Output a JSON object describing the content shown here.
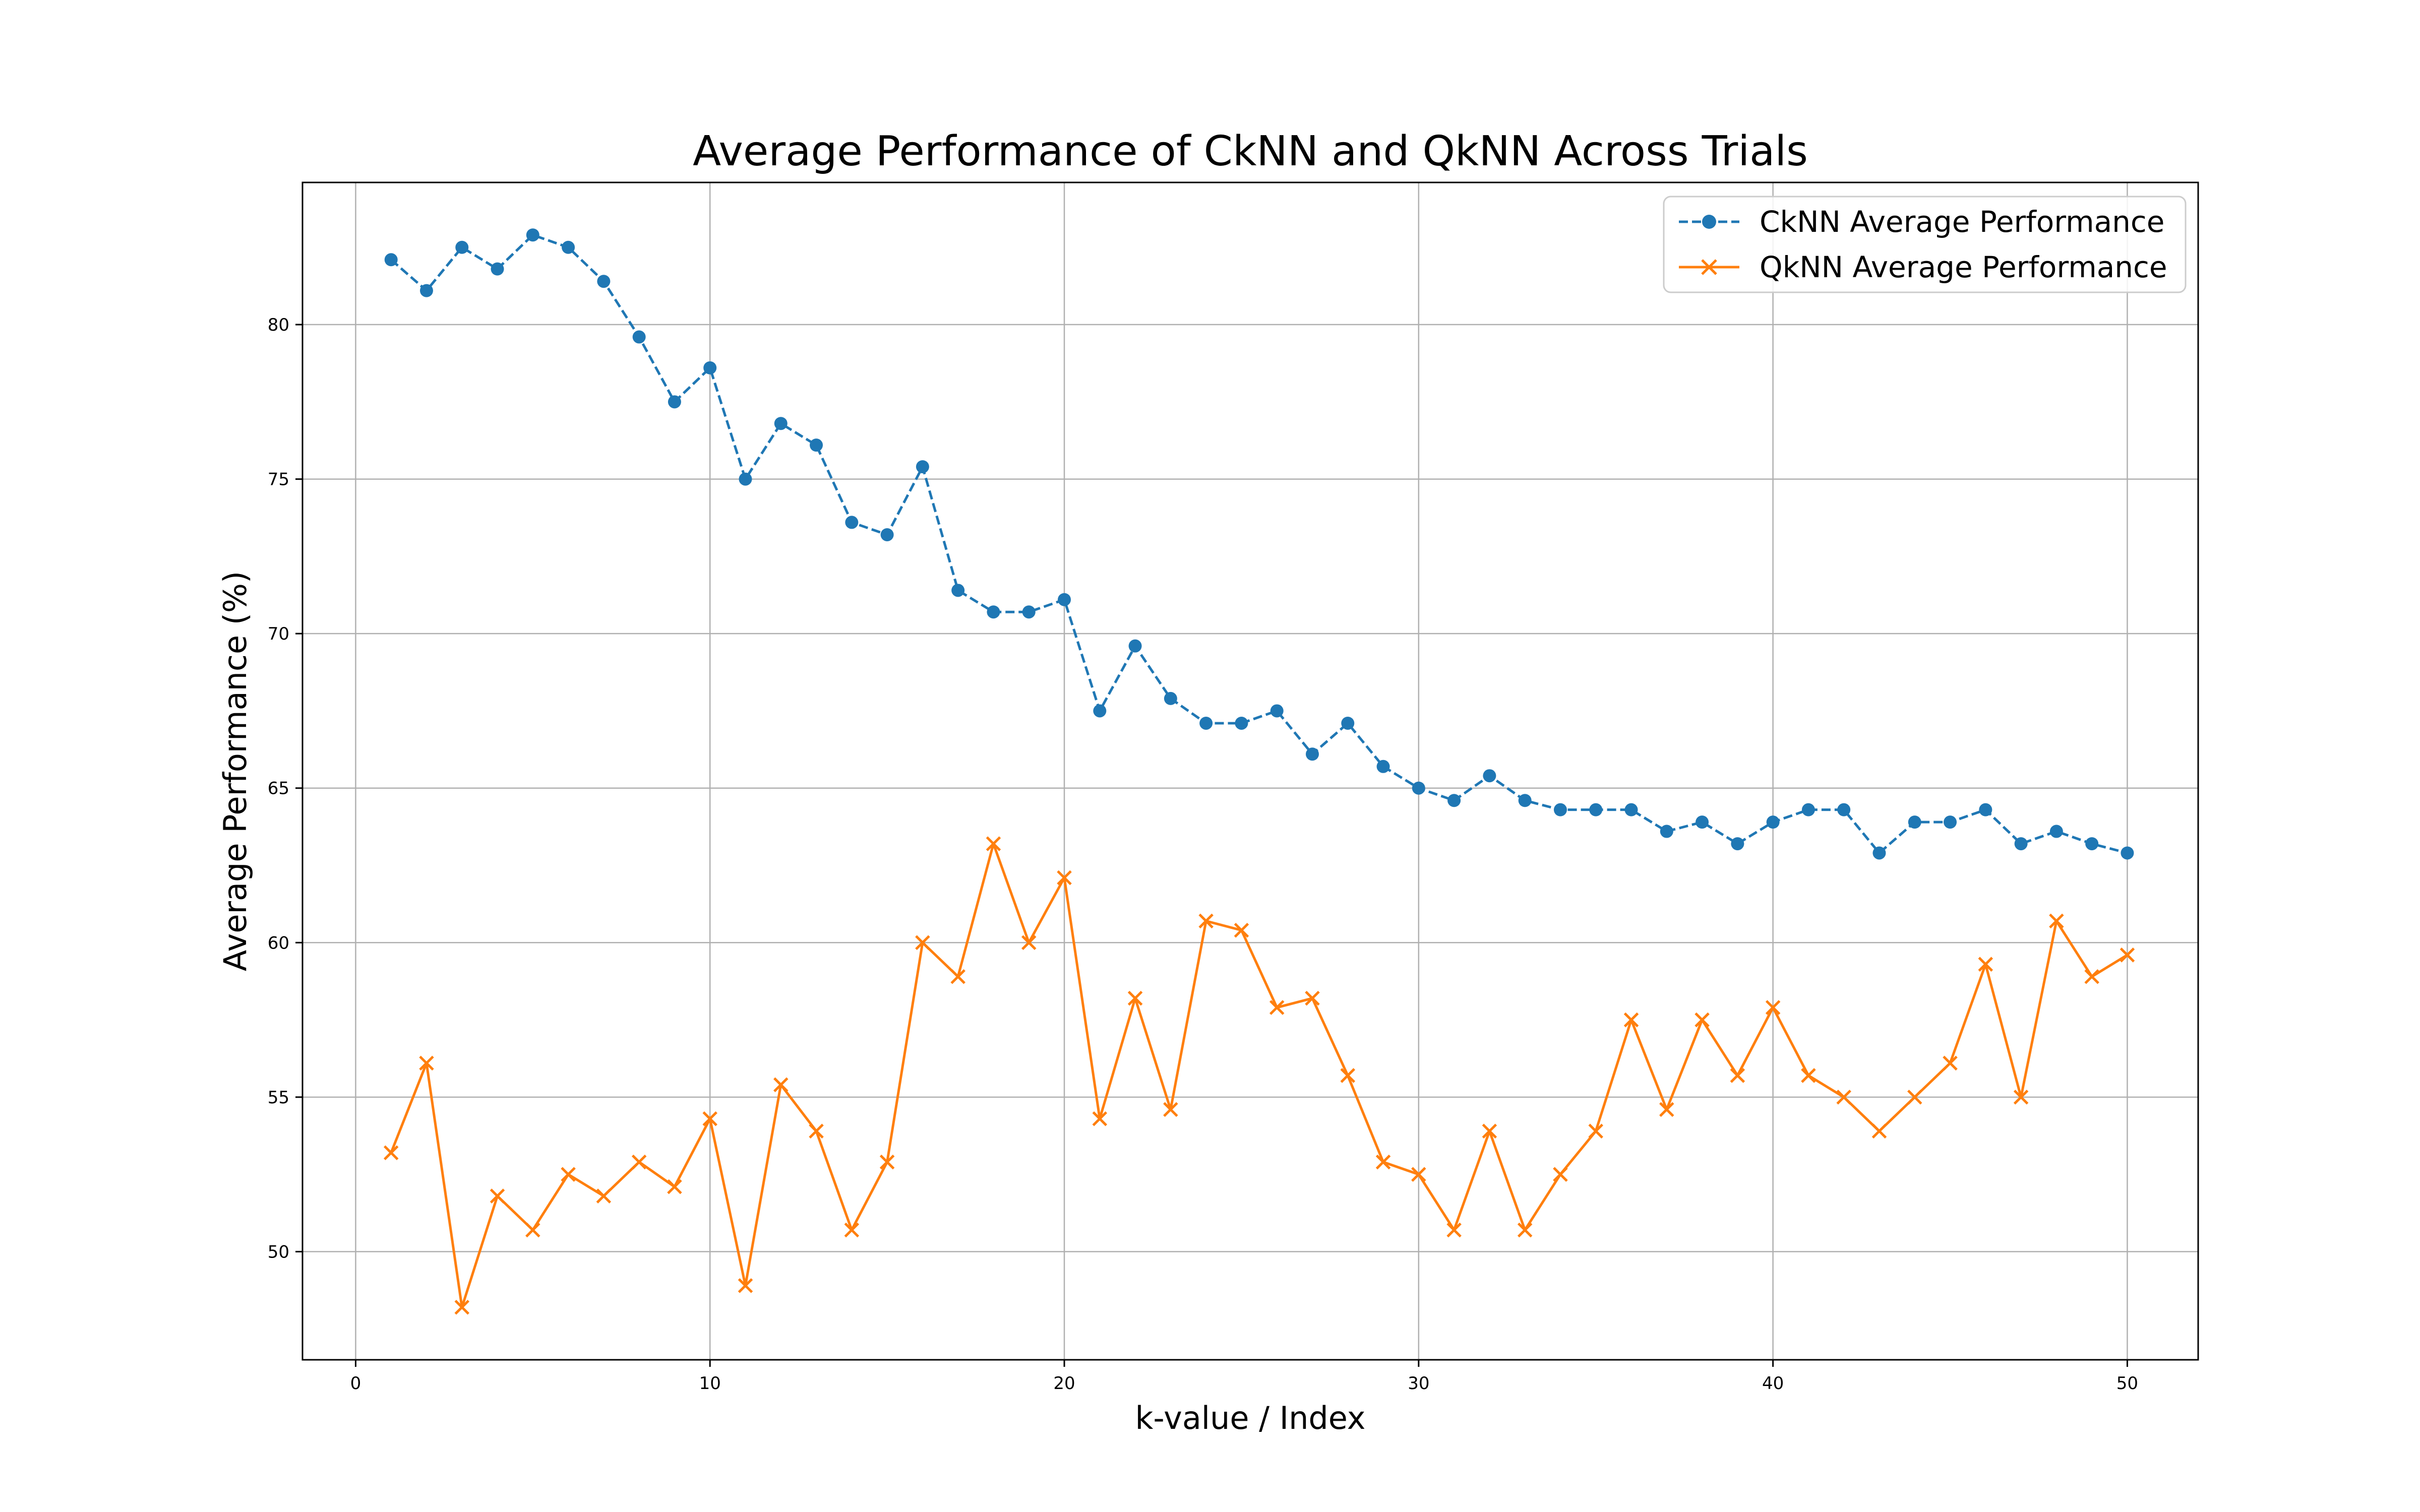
{
  "chart_data": {
    "type": "line",
    "title": "Average Performance of CkNN and QkNN Across Trials",
    "xlabel": "k-value / Index",
    "ylabel": "Average Performance (%)",
    "xlim": [
      -1.5,
      52
    ],
    "ylim": [
      46.5,
      84.6
    ],
    "xticks": [
      0,
      10,
      20,
      30,
      40,
      50
    ],
    "yticks": [
      50,
      55,
      60,
      65,
      70,
      75,
      80
    ],
    "grid": true,
    "legend_position": "top-right",
    "x": [
      1,
      2,
      3,
      4,
      5,
      6,
      7,
      8,
      9,
      10,
      11,
      12,
      13,
      14,
      15,
      16,
      17,
      18,
      19,
      20,
      21,
      22,
      23,
      24,
      25,
      26,
      27,
      28,
      29,
      30,
      31,
      32,
      33,
      34,
      35,
      36,
      37,
      38,
      39,
      40,
      41,
      42,
      43,
      44,
      45,
      46,
      47,
      48,
      49,
      50
    ],
    "series": [
      {
        "name": "CkNN Average Performance",
        "color": "#1f77b4",
        "line_style": "dashed",
        "marker": "circle",
        "values": [
          82.1,
          81.1,
          82.5,
          81.8,
          82.9,
          82.5,
          81.4,
          79.6,
          77.5,
          78.6,
          75.0,
          76.8,
          76.1,
          73.6,
          73.2,
          75.4,
          71.4,
          70.7,
          70.7,
          71.1,
          67.5,
          69.6,
          67.9,
          67.1,
          67.1,
          67.5,
          66.1,
          67.1,
          65.7,
          65.0,
          64.6,
          65.4,
          64.6,
          64.3,
          64.3,
          64.3,
          63.6,
          63.9,
          63.2,
          63.9,
          64.3,
          64.3,
          62.9,
          63.9,
          63.9,
          64.3,
          63.2,
          63.6,
          63.2,
          62.9
        ]
      },
      {
        "name": "QkNN Average Performance",
        "color": "#ff7f0e",
        "line_style": "solid",
        "marker": "x",
        "values": [
          53.2,
          56.1,
          48.2,
          51.8,
          50.7,
          52.5,
          51.8,
          52.9,
          52.1,
          54.3,
          48.9,
          55.4,
          53.9,
          50.7,
          52.9,
          60.0,
          58.9,
          63.2,
          60.0,
          62.1,
          54.3,
          58.2,
          54.6,
          60.7,
          60.4,
          57.9,
          58.2,
          55.7,
          52.9,
          52.5,
          50.7,
          53.9,
          50.7,
          52.5,
          53.9,
          57.5,
          54.6,
          57.5,
          55.7,
          57.9,
          55.7,
          55.0,
          53.9,
          55.0,
          56.1,
          59.3,
          55.0,
          60.7,
          58.9,
          59.6
        ]
      }
    ]
  }
}
